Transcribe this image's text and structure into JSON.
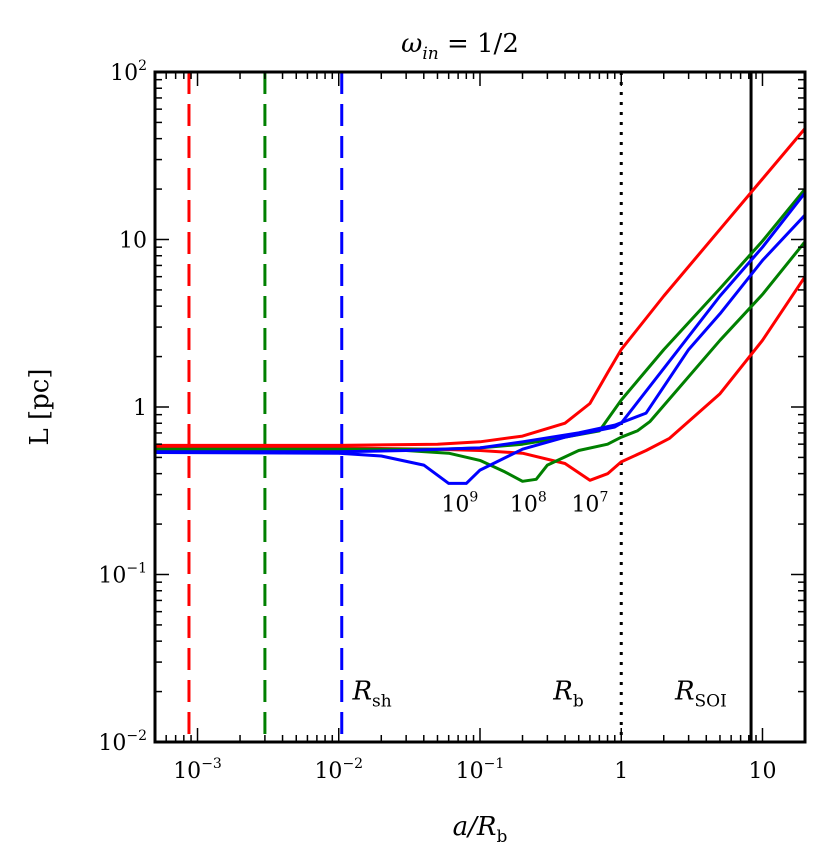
{
  "chart_data": {
    "type": "line",
    "title": {
      "main": "ω",
      "sub": "in",
      "rest": " = 1/2"
    },
    "xlabel": {
      "main": "a/R",
      "sub": "b"
    },
    "ylabel": {
      "main": "L [pc]"
    },
    "x_scale": "log",
    "y_scale": "log",
    "xlim": [
      0.0005,
      20
    ],
    "ylim": [
      0.01,
      100
    ],
    "x_ticks": [
      {
        "value": 0.001,
        "base": "10",
        "exp": "−3"
      },
      {
        "value": 0.01,
        "base": "10",
        "exp": "−2"
      },
      {
        "value": 0.1,
        "base": "10",
        "exp": "−1"
      },
      {
        "value": 1,
        "base": "1",
        "exp": ""
      },
      {
        "value": 10,
        "base": "10",
        "exp": ""
      }
    ],
    "y_ticks": [
      {
        "value": 0.01,
        "base": "10",
        "exp": "−2"
      },
      {
        "value": 0.1,
        "base": "10",
        "exp": "−1"
      },
      {
        "value": 1,
        "base": "1",
        "exp": ""
      },
      {
        "value": 10,
        "base": "10",
        "exp": ""
      },
      {
        "value": 100,
        "base": "10",
        "exp": "2"
      }
    ],
    "series": [
      {
        "name": "red-upper",
        "color": "#ff0000",
        "points": [
          [
            0.0005,
            0.59
          ],
          [
            0.01,
            0.59
          ],
          [
            0.05,
            0.6
          ],
          [
            0.1,
            0.62
          ],
          [
            0.2,
            0.67
          ],
          [
            0.4,
            0.8
          ],
          [
            0.6,
            1.05
          ],
          [
            0.8,
            1.6
          ],
          [
            1,
            2.2
          ],
          [
            2,
            4.6
          ],
          [
            5,
            11.5
          ],
          [
            10,
            23
          ],
          [
            20,
            46
          ]
        ]
      },
      {
        "name": "red-lower",
        "color": "#ff0000",
        "points": [
          [
            0.0005,
            0.575
          ],
          [
            0.01,
            0.57
          ],
          [
            0.05,
            0.56
          ],
          [
            0.1,
            0.55
          ],
          [
            0.2,
            0.53
          ],
          [
            0.4,
            0.46
          ],
          [
            0.6,
            0.365
          ],
          [
            0.8,
            0.4
          ],
          [
            1,
            0.47
          ],
          [
            1.5,
            0.55
          ],
          [
            2.2,
            0.65
          ],
          [
            5,
            1.2
          ],
          [
            10,
            2.5
          ],
          [
            20,
            6
          ]
        ]
      },
      {
        "name": "green-upper",
        "color": "#008000",
        "points": [
          [
            0.0005,
            0.56
          ],
          [
            0.01,
            0.56
          ],
          [
            0.05,
            0.56
          ],
          [
            0.1,
            0.57
          ],
          [
            0.2,
            0.6
          ],
          [
            0.4,
            0.66
          ],
          [
            0.7,
            0.72
          ],
          [
            1,
            1.1
          ],
          [
            2,
            2.2
          ],
          [
            5,
            5.1
          ],
          [
            10,
            9.8
          ],
          [
            20,
            20
          ]
        ]
      },
      {
        "name": "green-lower",
        "color": "#008000",
        "points": [
          [
            0.0005,
            0.555
          ],
          [
            0.01,
            0.555
          ],
          [
            0.03,
            0.55
          ],
          [
            0.06,
            0.53
          ],
          [
            0.1,
            0.48
          ],
          [
            0.15,
            0.41
          ],
          [
            0.2,
            0.36
          ],
          [
            0.25,
            0.37
          ],
          [
            0.3,
            0.45
          ],
          [
            0.5,
            0.55
          ],
          [
            0.8,
            0.6
          ],
          [
            1,
            0.66
          ],
          [
            1.3,
            0.72
          ],
          [
            1.6,
            0.82
          ],
          [
            5,
            2.5
          ],
          [
            10,
            4.7
          ],
          [
            20,
            9.7
          ]
        ]
      },
      {
        "name": "blue-upper",
        "color": "#0000ff",
        "points": [
          [
            0.0005,
            0.54
          ],
          [
            0.01,
            0.54
          ],
          [
            0.03,
            0.55
          ],
          [
            0.1,
            0.57
          ],
          [
            0.2,
            0.62
          ],
          [
            0.5,
            0.7
          ],
          [
            0.9,
            0.78
          ],
          [
            1.5,
            0.92
          ],
          [
            3,
            2.2
          ],
          [
            5,
            3.6
          ],
          [
            10,
            7.5
          ],
          [
            20,
            14
          ]
        ]
      },
      {
        "name": "blue-lower",
        "color": "#0000ff",
        "points": [
          [
            0.0005,
            0.535
          ],
          [
            0.01,
            0.53
          ],
          [
            0.02,
            0.51
          ],
          [
            0.04,
            0.45
          ],
          [
            0.06,
            0.35
          ],
          [
            0.08,
            0.35
          ],
          [
            0.1,
            0.42
          ],
          [
            0.2,
            0.56
          ],
          [
            0.4,
            0.66
          ],
          [
            0.9,
            0.76
          ],
          [
            1,
            0.8
          ],
          [
            2,
            1.7
          ],
          [
            5,
            4.6
          ],
          [
            10,
            9
          ],
          [
            20,
            19
          ]
        ]
      }
    ],
    "vlines": [
      {
        "name": "rsh-red",
        "x": 0.00087,
        "color": "#ff0000",
        "style": "dashed"
      },
      {
        "name": "rsh-green",
        "x": 0.003,
        "color": "#008000",
        "style": "dashed"
      },
      {
        "name": "rsh-blue",
        "x": 0.0105,
        "color": "#0000ff",
        "style": "dashed"
      },
      {
        "name": "rb",
        "x": 1.0,
        "color": "#000000",
        "style": "dotted"
      },
      {
        "name": "rsoi",
        "x": 8.3,
        "color": "#000000",
        "style": "solid"
      }
    ],
    "mass_labels": [
      {
        "name": "mass-label-1e9",
        "base": "10",
        "exp": "9",
        "x": 0.072,
        "y": 0.265
      },
      {
        "name": "mass-label-1e8",
        "base": "10",
        "exp": "8",
        "x": 0.22,
        "y": 0.265
      },
      {
        "name": "mass-label-1e7",
        "base": "10",
        "exp": "7",
        "x": 0.6,
        "y": 0.265
      }
    ],
    "region_labels": [
      {
        "name": "label-rsh",
        "main": "R",
        "sub": "sh",
        "x": 0.0125,
        "y": 0.02
      },
      {
        "name": "label-rb",
        "main": "R",
        "sub": "b",
        "x": 0.33,
        "y": 0.02
      },
      {
        "name": "label-rsoi",
        "main": "R",
        "sub": "SOI",
        "x": 2.4,
        "y": 0.02
      }
    ]
  }
}
